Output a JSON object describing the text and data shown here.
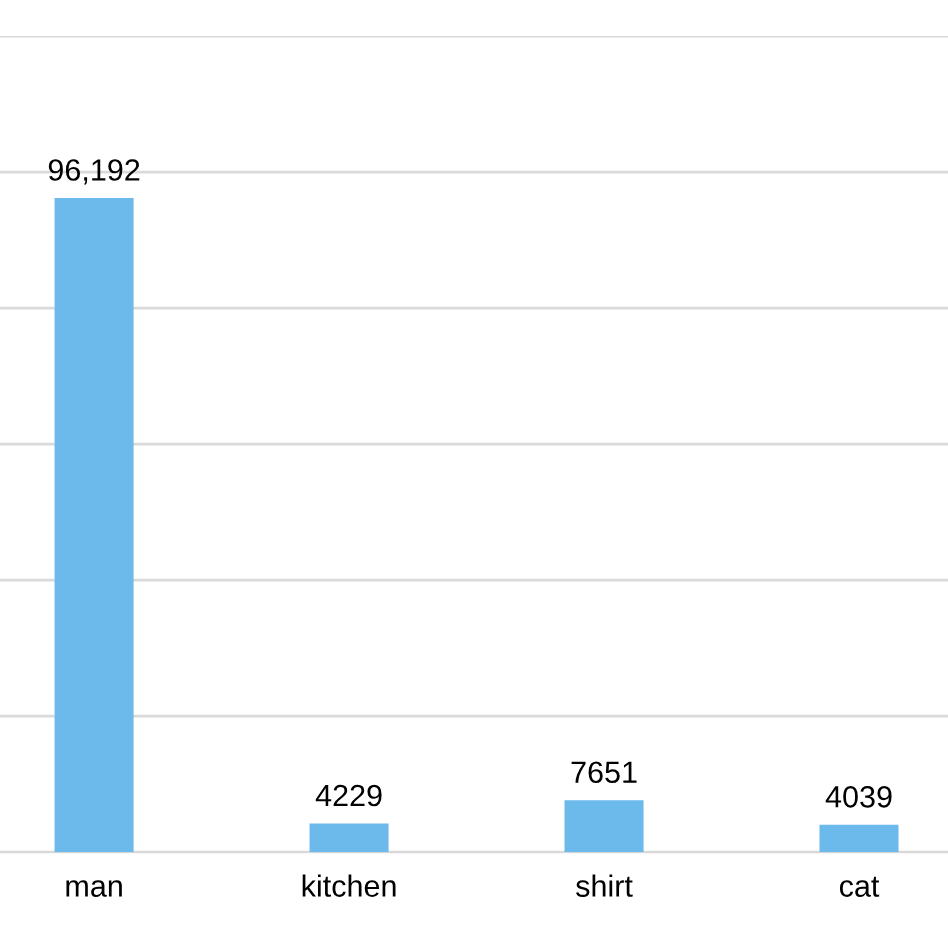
{
  "chart_data": {
    "type": "bar",
    "categories": [
      "man",
      "kitchen",
      "shirt",
      "cat"
    ],
    "values": [
      96192,
      4229,
      7651,
      4039
    ],
    "value_labels": [
      "96,192",
      "4229",
      "7651",
      "4039"
    ],
    "color": "#6cb9ec",
    "ylim": [
      0,
      120000
    ],
    "yticks": [
      {
        "value": 0,
        "label": null
      },
      {
        "value": 20000,
        "label": null
      },
      {
        "value": 40000,
        "label": null
      },
      {
        "value": 60000,
        "label": null
      },
      {
        "value": 80000,
        "label": null
      },
      {
        "value": 100000,
        "label": null
      },
      {
        "value": 120000,
        "label": null
      }
    ],
    "tick_labels": "x",
    "grid": "y",
    "legend": false
  }
}
